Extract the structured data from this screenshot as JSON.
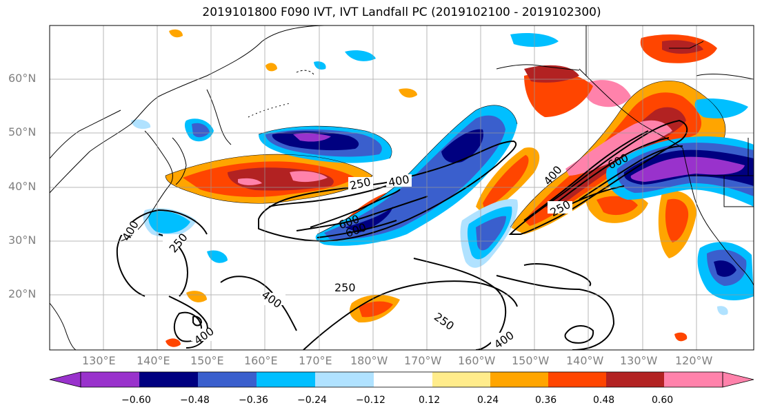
{
  "title": "2019101800 F090 IVT, IVT Landfall PC (2019102100 - 2019102300)",
  "lat_labels": [
    "60°N",
    "50°N",
    "40°N",
    "30°N",
    "20°N"
  ],
  "lon_labels": [
    "130°E",
    "140°E",
    "150°E",
    "160°E",
    "170°E",
    "180°W",
    "170°W",
    "160°W",
    "150°W",
    "140°W",
    "130°W",
    "120°W"
  ],
  "colorbar": {
    "colors": [
      "#9932cc",
      "#000080",
      "#3a5fcd",
      "#00bfff",
      "#b0e2ff",
      "#ffffff",
      "#ffec8b",
      "#ffa500",
      "#ff4500",
      "#b22222",
      "#ff82ab"
    ],
    "tick_labels": [
      "−0.60",
      "−0.48",
      "−0.36",
      "−0.24",
      "−0.12",
      "0.12",
      "0.24",
      "0.36",
      "0.48",
      "0.60"
    ]
  },
  "contour_labels": [
    "250",
    "400",
    "250",
    "400",
    "600",
    "600",
    "400",
    "600",
    "250",
    "400",
    "250",
    "250",
    "400",
    "250",
    "400",
    "400"
  ],
  "legend_note": ""
}
